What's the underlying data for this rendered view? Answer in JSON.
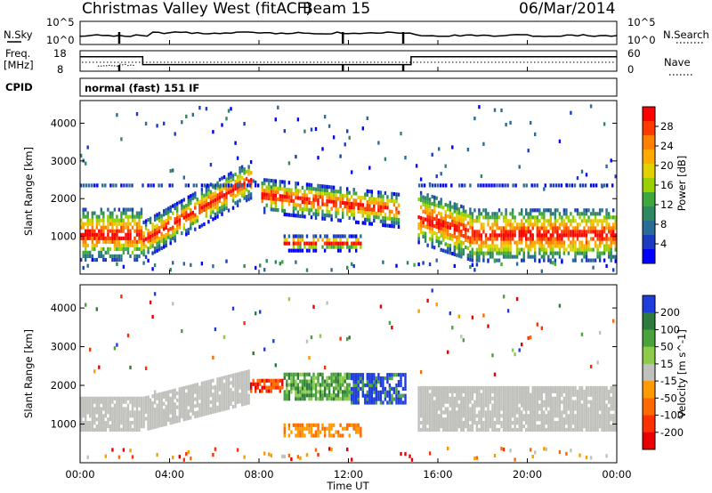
{
  "header": {
    "title": "Christmas Valley West (fitACF)",
    "beam": "Beam 15",
    "date": "06/Mar/2014"
  },
  "summary": {
    "nsky_label": "N.Sky",
    "nsearch_label": "N.Search",
    "log_ticks": [
      "10^5",
      "10^0"
    ],
    "freq_label": "Freq.",
    "freq_unit": "[MHz]",
    "freq_ticks": [
      "18",
      "8"
    ],
    "nave_label": "Nave",
    "nave_ticks": [
      "60",
      "0"
    ],
    "cpid_label": "CPID",
    "cpid_text": "normal (fast) 151 IF"
  },
  "colors": {
    "background": "#ffffff",
    "frame": "#000000",
    "ground_scatter": "#c0c0bc"
  },
  "chart_data": [
    {
      "type": "heatmap",
      "ylabel": "Slant Range [km]",
      "xlabel": "",
      "ylim": [
        0,
        4600
      ],
      "yticks": [
        1000,
        2000,
        3000,
        4000
      ],
      "colorbar": {
        "label": "Power [dB]",
        "ticks": [
          "28",
          "24",
          "20",
          "16",
          "12",
          "8",
          "4"
        ],
        "values": [
          28,
          24,
          20,
          16,
          12,
          8,
          4
        ],
        "colors": [
          "#ff0000",
          "#ff3a00",
          "#ff7f00",
          "#ffaa00",
          "#e2d000",
          "#9ad000",
          "#3ea83e",
          "#2e8a5e",
          "#2a6c96",
          "#1b3cc0",
          "#0000ff"
        ]
      },
      "regions": [
        {
          "start_hr": 0.0,
          "end_hr": 2.8,
          "center_km": 1100,
          "half_km": 250,
          "value": "high"
        },
        {
          "start_hr": 2.8,
          "end_hr": 7.5,
          "center_km_from": 950,
          "center_km_to": 2600,
          "half_km": 300,
          "value": "rising"
        },
        {
          "start_hr": 8.0,
          "end_hr": 14.2,
          "center_km": 1950,
          "half_km": 300,
          "value": "mid"
        },
        {
          "start_hr": 9.0,
          "end_hr": 12.5,
          "center_km": 880,
          "half_km": 120,
          "value": "mid"
        },
        {
          "start_hr": 15.0,
          "end_hr": 24.0,
          "center_km": 1100,
          "half_km": 250,
          "value": "high"
        }
      ]
    },
    {
      "type": "heatmap",
      "ylabel": "Slant Range [km]",
      "xlabel": "Time UT",
      "ylim": [
        0,
        4600
      ],
      "yticks": [
        1000,
        2000,
        3000,
        4000
      ],
      "x": [
        "00:00",
        "04:00",
        "08:00",
        "12:00",
        "16:00",
        "20:00",
        "00:00"
      ],
      "colorbar": {
        "label": "Velocity [m s^-1]",
        "ticks": [
          "200",
          "100",
          "50",
          "15",
          "-15",
          "-50",
          "-100",
          "-200"
        ],
        "values": [
          200,
          100,
          50,
          15,
          -15,
          -50,
          -100,
          -200
        ],
        "colors": [
          "#1f3cdc",
          "#2c7a3e",
          "#4aa23a",
          "#8ccb4a",
          "#c0c0bc",
          "#ff9a00",
          "#ff6a00",
          "#ff3000",
          "#e80000"
        ]
      },
      "regions": [
        {
          "start_hr": 0.0,
          "end_hr": 7.5,
          "center_km": 1300,
          "half_km": 400,
          "value": "ground"
        },
        {
          "start_hr": 7.5,
          "end_hr": 9.0,
          "center_km": 2050,
          "half_km": 150,
          "value": "-100"
        },
        {
          "start_hr": 9.0,
          "end_hr": 12.0,
          "center_km": 2000,
          "half_km": 300,
          "value": "50"
        },
        {
          "start_hr": 12.0,
          "end_hr": 14.5,
          "center_km": 2000,
          "half_km": 400,
          "value": "200"
        },
        {
          "start_hr": 9.0,
          "end_hr": 12.5,
          "center_km": 880,
          "half_km": 150,
          "value": "-50"
        },
        {
          "start_hr": 15.0,
          "end_hr": 24.0,
          "center_km": 1300,
          "half_km": 400,
          "value": "ground"
        }
      ]
    }
  ]
}
